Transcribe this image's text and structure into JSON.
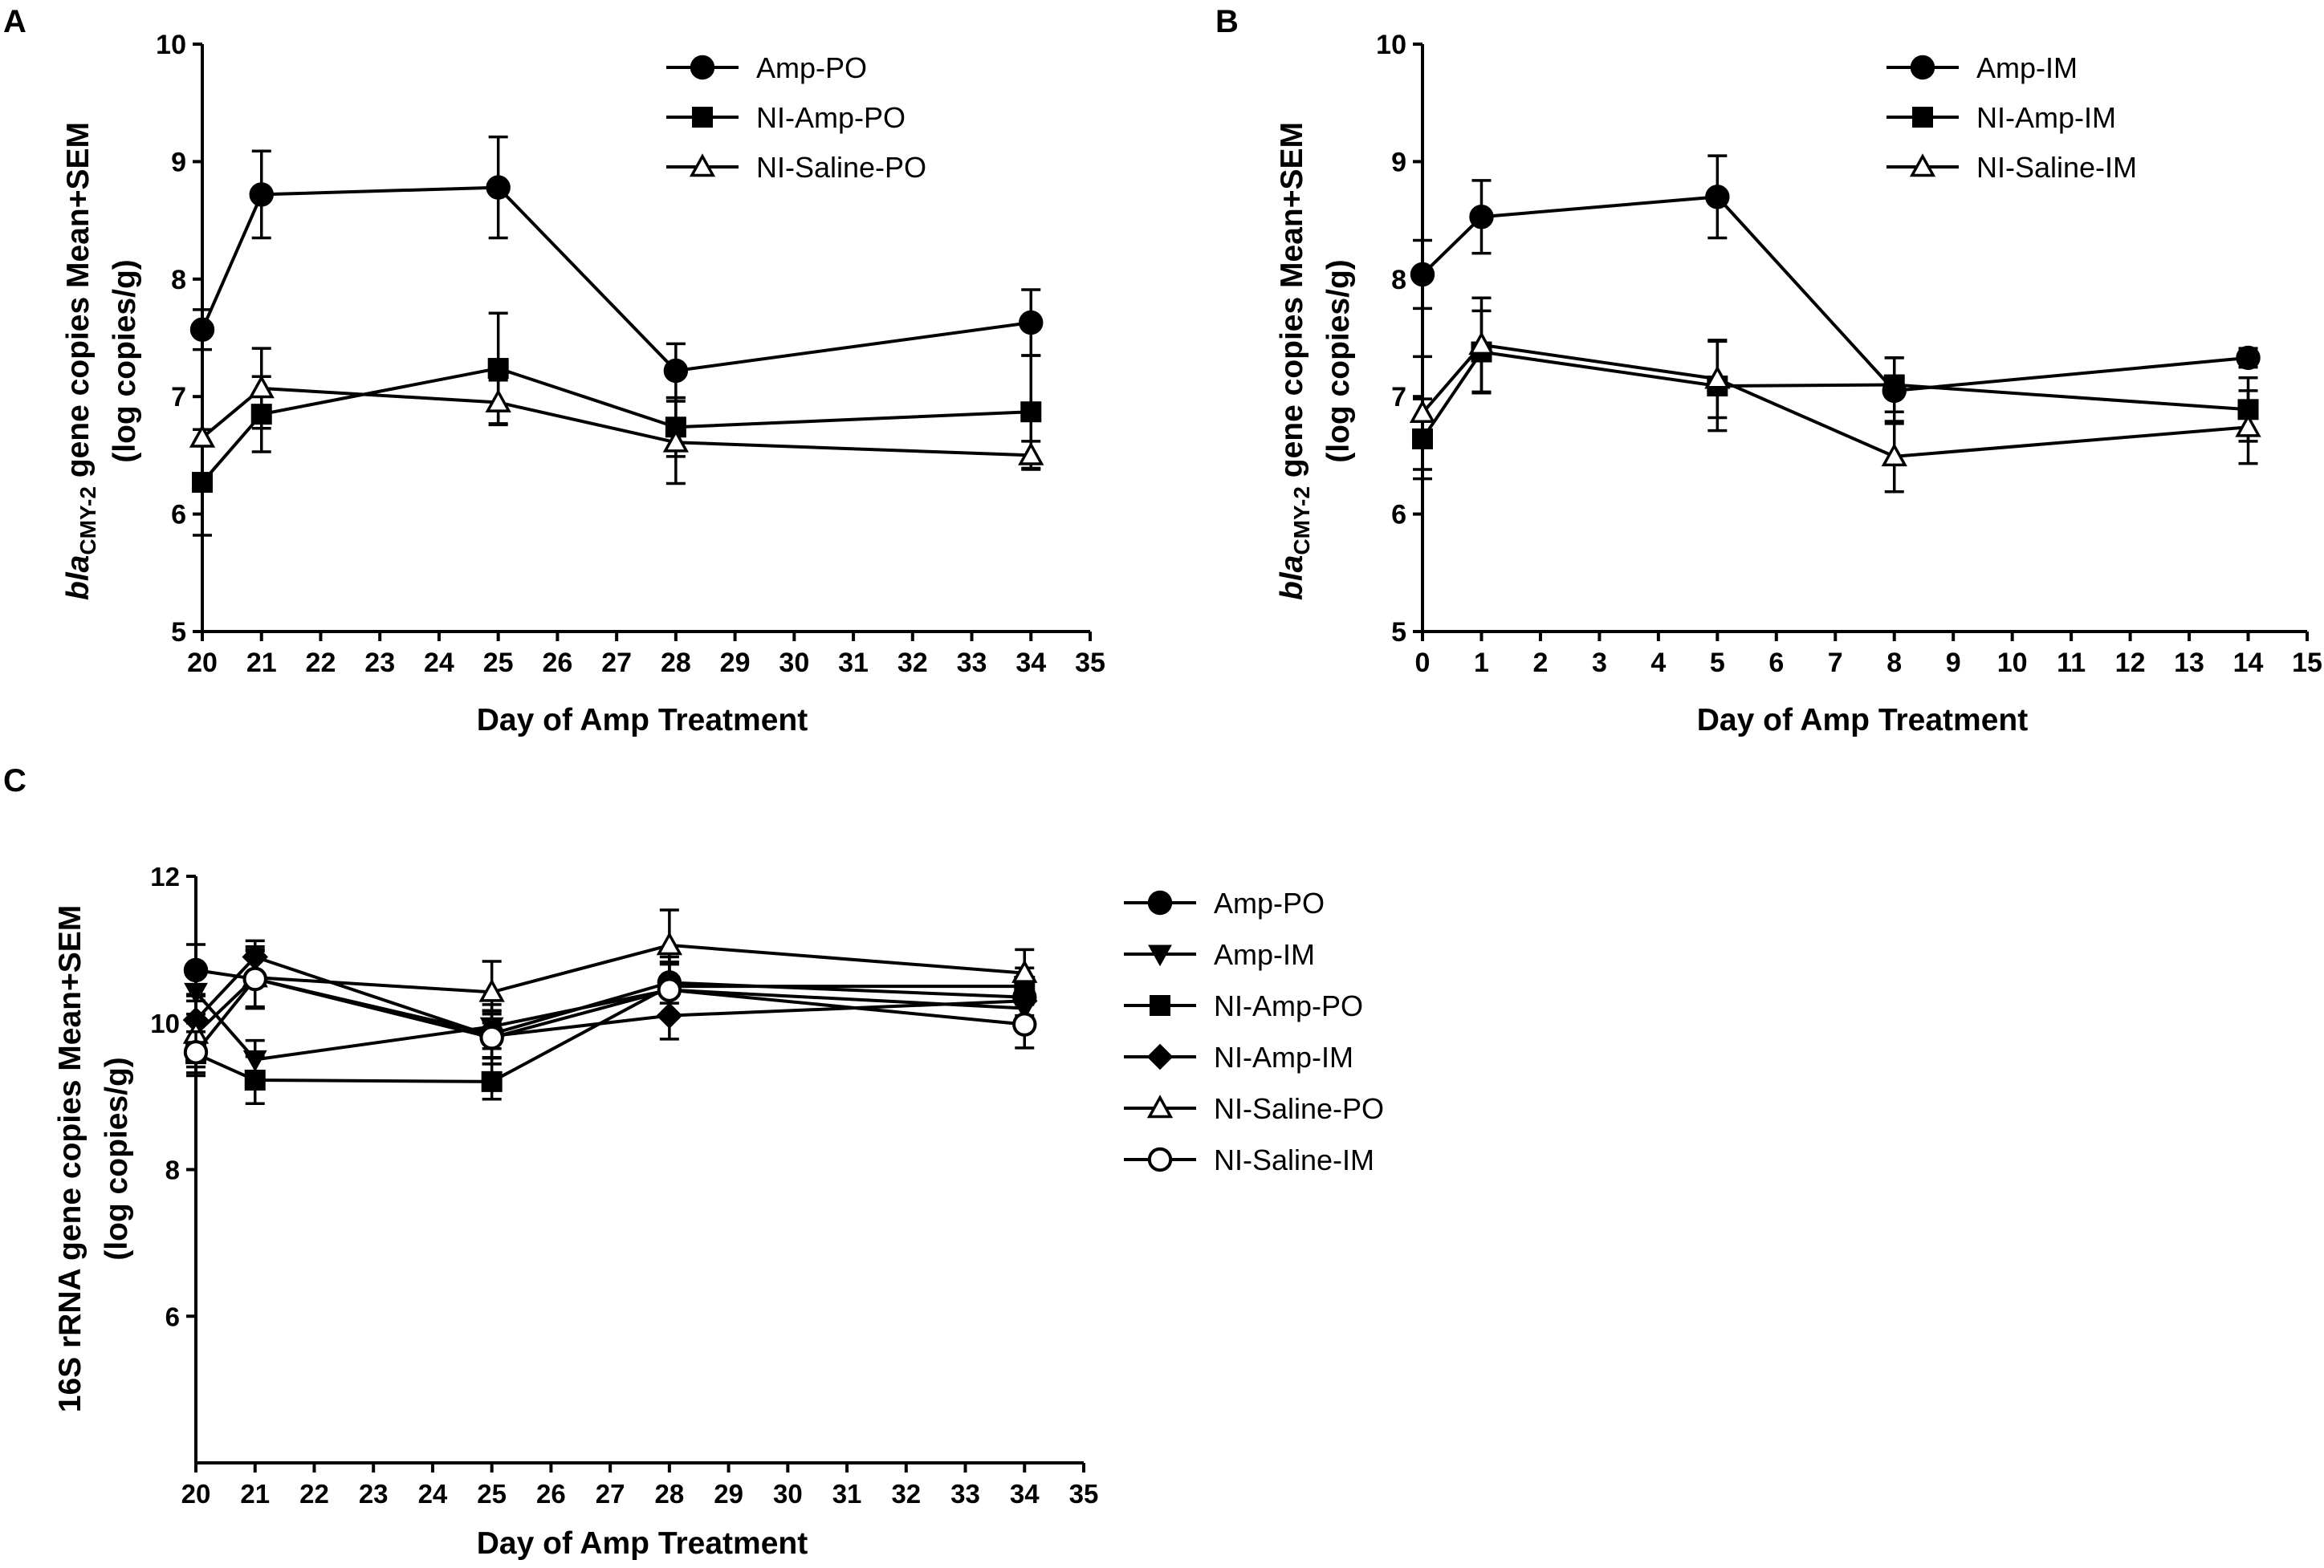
{
  "figure": {
    "background": "#ffffff",
    "ink": "#000000"
  },
  "chart_data": [
    {
      "id": "A",
      "panel_label": "A",
      "type": "line",
      "xlabel": "Day of Amp Treatment",
      "ylabel_italic": "bla",
      "ylabel_sub": "CMY-2",
      "ylabel_rest": " gene copies Mean+SEM",
      "ylabel_line2": "(log copies/g)",
      "xlim": [
        20,
        35
      ],
      "ylim": [
        5,
        10
      ],
      "xticks": [
        20,
        21,
        22,
        23,
        24,
        25,
        26,
        27,
        28,
        29,
        30,
        31,
        32,
        33,
        34,
        35
      ],
      "yticks": [
        5,
        6,
        7,
        8,
        9,
        10
      ],
      "series": [
        {
          "name": "Amp-PO",
          "marker": "circle",
          "x": [
            20,
            21,
            25,
            28,
            34
          ],
          "y": [
            7.57,
            8.72,
            8.78,
            7.22,
            7.63
          ],
          "err": [
            0.17,
            0.37,
            0.43,
            0.23,
            0.28
          ]
        },
        {
          "name": "NI-Amp-PO",
          "marker": "square",
          "x": [
            20,
            21,
            25,
            28,
            34
          ],
          "y": [
            6.27,
            6.85,
            7.24,
            6.74,
            6.87
          ],
          "err": [
            0.45,
            0.32,
            0.47,
            0.25,
            0.48
          ]
        },
        {
          "name": "NI-Saline-PO",
          "marker": "triangle-open",
          "x": [
            20,
            21,
            25,
            28,
            34
          ],
          "y": [
            6.65,
            7.07,
            6.95,
            6.61,
            6.5
          ],
          "err": [
            0.07,
            0.34,
            0.19,
            0.35,
            0.12
          ]
        }
      ]
    },
    {
      "id": "B",
      "panel_label": "B",
      "type": "line",
      "xlabel": "Day of Amp Treatment",
      "ylabel_italic": "bla",
      "ylabel_sub": "CMY-2",
      "ylabel_rest": " gene copies Mean+SEM",
      "ylabel_line2": "(log copies/g)",
      "xlim": [
        0,
        15
      ],
      "ylim": [
        5,
        10
      ],
      "xticks": [
        0,
        1,
        2,
        3,
        4,
        5,
        6,
        7,
        8,
        9,
        10,
        11,
        12,
        13,
        14,
        15
      ],
      "yticks": [
        5,
        6,
        7,
        8,
        9,
        10
      ],
      "series": [
        {
          "name": "Amp-IM",
          "marker": "circle",
          "x": [
            0,
            1,
            5,
            8,
            14
          ],
          "y": [
            8.04,
            8.53,
            8.7,
            7.05,
            7.33
          ],
          "err": [
            0.29,
            0.31,
            0.35,
            0.28,
            0.08
          ]
        },
        {
          "name": "NI-Amp-IM",
          "marker": "square",
          "x": [
            0,
            1,
            5,
            8,
            14
          ],
          "y": [
            6.64,
            7.38,
            7.09,
            7.1,
            6.89
          ],
          "err": [
            0.34,
            0.35,
            0.38,
            0.23,
            0.27
          ]
        },
        {
          "name": "NI-Saline-IM",
          "marker": "triangle-open",
          "x": [
            0,
            1,
            5,
            8,
            14
          ],
          "y": [
            6.86,
            7.44,
            7.15,
            6.49,
            6.74
          ],
          "err": [
            0.48,
            0.4,
            0.33,
            0.3,
            0.31
          ]
        }
      ]
    },
    {
      "id": "C",
      "panel_label": "C",
      "type": "line",
      "xlabel": "Day of Amp Treatment",
      "ylabel_line1": "16S rRNA gene copies Mean+SEM",
      "ylabel_line2": "(log copies/g)",
      "xlim": [
        20,
        35
      ],
      "ylim": [
        4,
        12
      ],
      "xticks": [
        20,
        21,
        22,
        23,
        24,
        25,
        26,
        27,
        28,
        29,
        30,
        31,
        32,
        33,
        34,
        35
      ],
      "yticks": [
        6,
        8,
        10,
        12
      ],
      "series": [
        {
          "name": "Amp-PO",
          "marker": "circle",
          "x": [
            20,
            21,
            25,
            28,
            34
          ],
          "y": [
            10.72,
            10.6,
            9.85,
            10.55,
            10.35
          ],
          "err": [
            0.35,
            0.38,
            0.32,
            0.28,
            0.25
          ]
        },
        {
          "name": "Amp-IM",
          "marker": "triangle-down",
          "x": [
            20,
            21,
            25,
            28,
            34
          ],
          "y": [
            10.42,
            9.5,
            9.95,
            10.45,
            10.2
          ],
          "err": [
            0.3,
            0.26,
            0.3,
            0.35,
            0.25
          ]
        },
        {
          "name": "NI-Amp-PO",
          "marker": "square",
          "x": [
            20,
            21,
            25,
            28,
            34
          ],
          "y": [
            9.58,
            9.22,
            9.2,
            10.5,
            10.5
          ],
          "err": [
            0.3,
            0.32,
            0.24,
            0.4,
            0.25
          ]
        },
        {
          "name": "NI-Amp-IM",
          "marker": "diamond",
          "x": [
            20,
            21,
            25,
            28,
            34
          ],
          "y": [
            10.04,
            10.9,
            9.82,
            10.1,
            10.3
          ],
          "err": [
            0.35,
            0.22,
            0.3,
            0.32,
            0.3
          ]
        },
        {
          "name": "NI-Saline-PO",
          "marker": "triangle-open",
          "x": [
            20,
            21,
            25,
            28,
            34
          ],
          "y": [
            9.85,
            10.62,
            10.42,
            11.06,
            10.68
          ],
          "err": [
            0.45,
            0.42,
            0.42,
            0.48,
            0.32
          ]
        },
        {
          "name": "NI-Saline-IM",
          "marker": "circle-open",
          "x": [
            20,
            21,
            25,
            28,
            34
          ],
          "y": [
            9.6,
            10.6,
            9.8,
            10.45,
            9.98
          ],
          "err": [
            0.28,
            0.4,
            0.36,
            0.38,
            0.32
          ]
        }
      ]
    }
  ]
}
